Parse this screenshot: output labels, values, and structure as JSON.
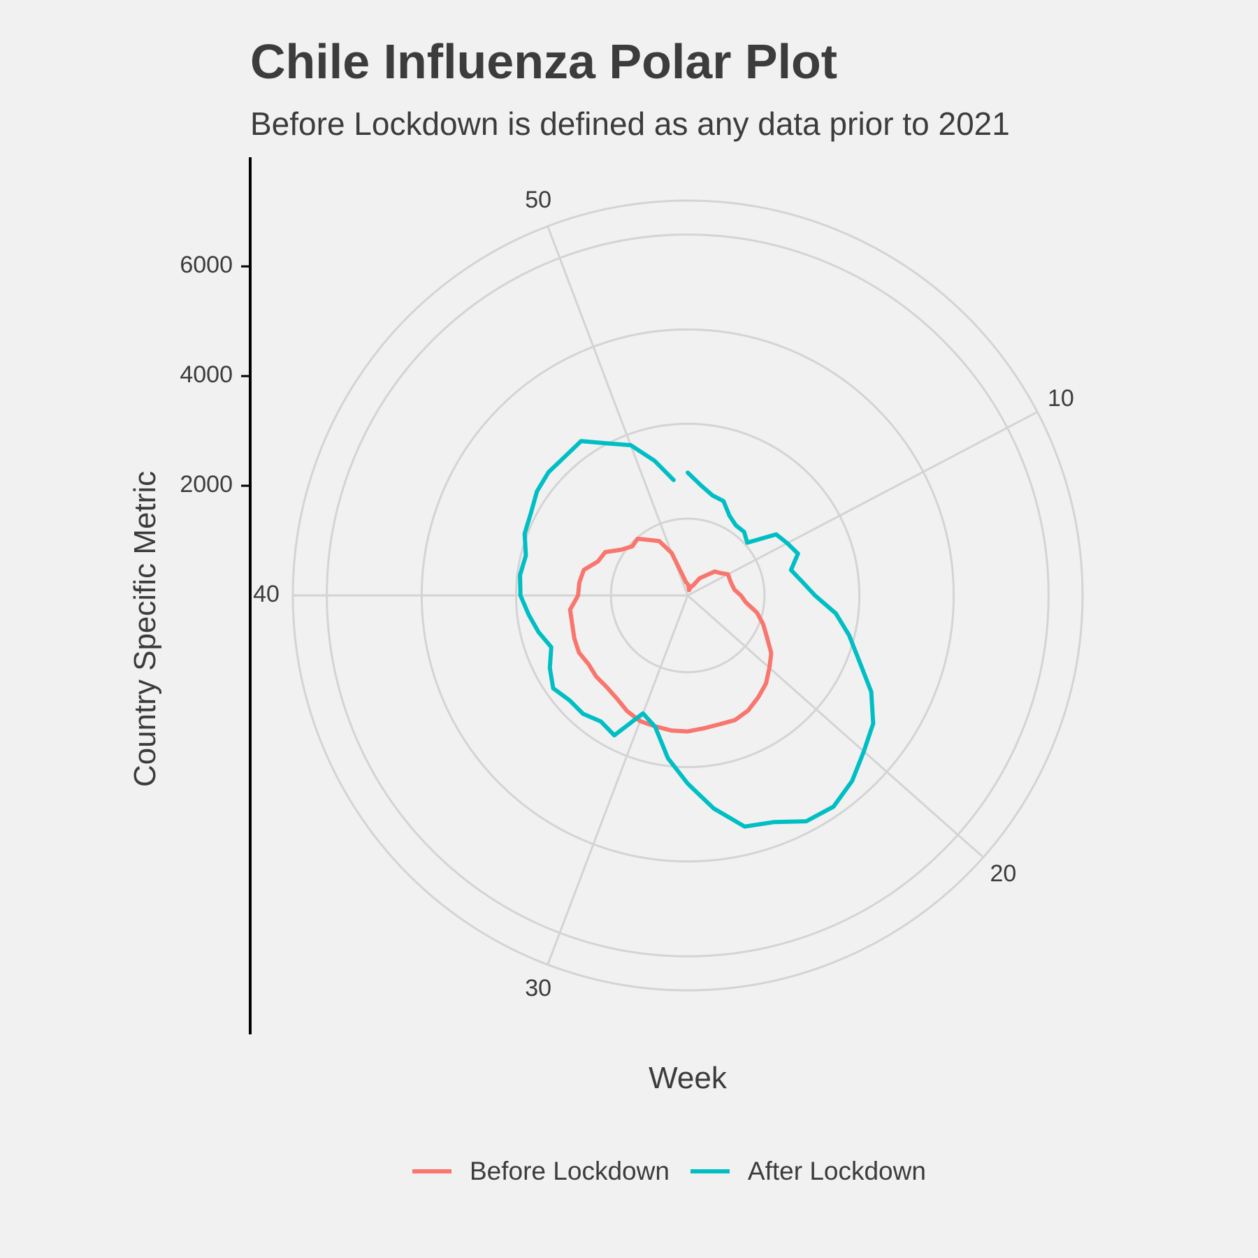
{
  "chart_data": {
    "type": "line",
    "coord": "polar",
    "title": "Chile Influenza Polar Plot",
    "subtitle": "Before Lockdown is defined as any data prior to 2021",
    "xlabel": "Week",
    "ylabel": "Country Specific Metric",
    "x_ticks": [
      "10",
      "20",
      "30",
      "40",
      "50"
    ],
    "y_ticks": [
      "2000",
      "4000",
      "6000"
    ],
    "xlim": [
      1,
      53
    ],
    "ylim": [
      0,
      7200
    ],
    "grid": true,
    "legend_position": "bottom",
    "series": [
      {
        "name": "Before Lockdown",
        "color": "#f8766d",
        "x": [
          1,
          2,
          3,
          4,
          5,
          6,
          7,
          8,
          9,
          10,
          11,
          12,
          13,
          14,
          15,
          16,
          17,
          18,
          19,
          20,
          21,
          22,
          23,
          24,
          25,
          26,
          27,
          28,
          29,
          30,
          31,
          32,
          33,
          34,
          35,
          36,
          37,
          38,
          39,
          40,
          41,
          42,
          43,
          44,
          45,
          46,
          47,
          48,
          49,
          50,
          51,
          52
        ],
        "values": [
          210,
          150,
          100,
          180,
          200,
          380,
          480,
          660,
          720,
          830,
          820,
          830,
          860,
          970,
          1070,
          1300,
          1470,
          1630,
          1850,
          1990,
          2150,
          2260,
          2370,
          2430,
          2420,
          2440,
          2480,
          2480,
          2460,
          2450,
          2380,
          2280,
          2230,
          2230,
          2200,
          2240,
          2210,
          2170,
          2160,
          2000,
          1990,
          1950,
          1750,
          1700,
          1470,
          1350,
          1380,
          1230,
          1120,
          830,
          370,
          240
        ]
      },
      {
        "name": "After Lockdown",
        "color": "#00bfc4",
        "x": [
          1,
          2,
          3,
          4,
          5,
          6,
          7,
          8,
          9,
          10,
          11,
          12,
          13,
          14,
          15,
          16,
          17,
          18,
          19,
          20,
          21,
          22,
          23,
          24,
          25,
          26,
          27,
          28,
          29,
          30,
          31,
          32,
          33,
          34,
          35,
          36,
          37,
          38,
          39,
          40,
          41,
          42,
          43,
          44,
          45,
          46,
          47,
          48,
          49,
          50,
          51,
          52
        ],
        "values": [
          2240,
          2020,
          1880,
          1840,
          1640,
          1550,
          1550,
          1450,
          1960,
          2050,
          2150,
          1940,
          2100,
          2320,
          2720,
          3030,
          3340,
          3780,
          4110,
          4290,
          4520,
          4680,
          4650,
          4420,
          4340,
          3910,
          3430,
          2990,
          2470,
          2300,
          2880,
          2790,
          2880,
          2880,
          2980,
          2840,
          2660,
          2800,
          2920,
          3050,
          3080,
          3040,
          3180,
          3230,
          3340,
          3390,
          3380,
          3420,
          3130,
          2930,
          2530,
          2120
        ]
      }
    ]
  }
}
